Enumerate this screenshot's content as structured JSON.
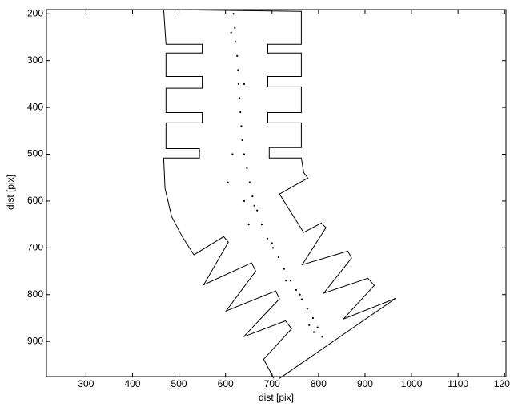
{
  "chart_data": {
    "type": "scatter",
    "xlabel": "dist [pix]",
    "ylabel": "dist [pix]",
    "xlim": [
      215,
      1203
    ],
    "ylim": [
      191,
      975
    ],
    "y_reversed": true,
    "xticks": [
      300,
      400,
      500,
      600,
      700,
      800,
      900,
      1000,
      1100,
      1200
    ],
    "yticks": [
      200,
      300,
      400,
      500,
      600,
      700,
      800,
      900
    ],
    "series": [
      {
        "type": "line",
        "color": "#000000",
        "x": [
          467,
          472,
          550,
          550,
          472,
          472,
          550,
          550,
          472,
          472,
          550,
          550,
          472,
          472,
          544,
          544,
          467,
          470,
          484,
          507,
          532,
          596,
          606,
          553,
          656,
          665,
          601,
          708,
          716,
          639,
          729,
          742,
          682,
          704,
          null,
          467,
          763,
          763,
          691,
          691,
          763,
          763,
          691,
          691,
          763,
          763,
          691,
          691,
          763,
          763,
          694,
          694,
          763,
          768,
          777,
          716,
          768,
          806,
          816,
          765,
          863,
          871,
          811,
          906,
          920,
          854,
          966,
          716
        ],
        "y": [
          191,
          265,
          265,
          284,
          284,
          334,
          334,
          359,
          359,
          411,
          411,
          433,
          433,
          488,
          488,
          508,
          508,
          573,
          633,
          676,
          715,
          676,
          688,
          779,
          732,
          750,
          835,
          792,
          809,
          890,
          856,
          873,
          938,
          979,
          null,
          191,
          195,
          265,
          265,
          284,
          284,
          334,
          334,
          356,
          356,
          411,
          411,
          433,
          433,
          486,
          486,
          508,
          508,
          539,
          551,
          585,
          667,
          647,
          657,
          736,
          707,
          722,
          797,
          765,
          780,
          852,
          808,
          979
        ]
      },
      {
        "type": "scatter",
        "color": "#000000",
        "x": [
          617,
          620,
          622,
          625,
          627,
          628,
          630,
          632,
          634,
          636,
          640,
          646,
          652,
          658,
          668,
          678,
          690,
          702,
          714,
          726,
          740,
          752,
          764,
          776,
          788,
          798,
          808,
          605,
          640,
          650,
          730,
          790,
          615,
          640,
          612,
          662,
          700,
          760,
          780
        ],
        "y": [
          200,
          230,
          260,
          290,
          320,
          350,
          380,
          410,
          440,
          470,
          500,
          530,
          560,
          590,
          620,
          650,
          680,
          700,
          720,
          745,
          770,
          790,
          810,
          830,
          850,
          870,
          890,
          560,
          600,
          650,
          770,
          880,
          500,
          350,
          240,
          610,
          690,
          800,
          865
        ]
      }
    ]
  }
}
